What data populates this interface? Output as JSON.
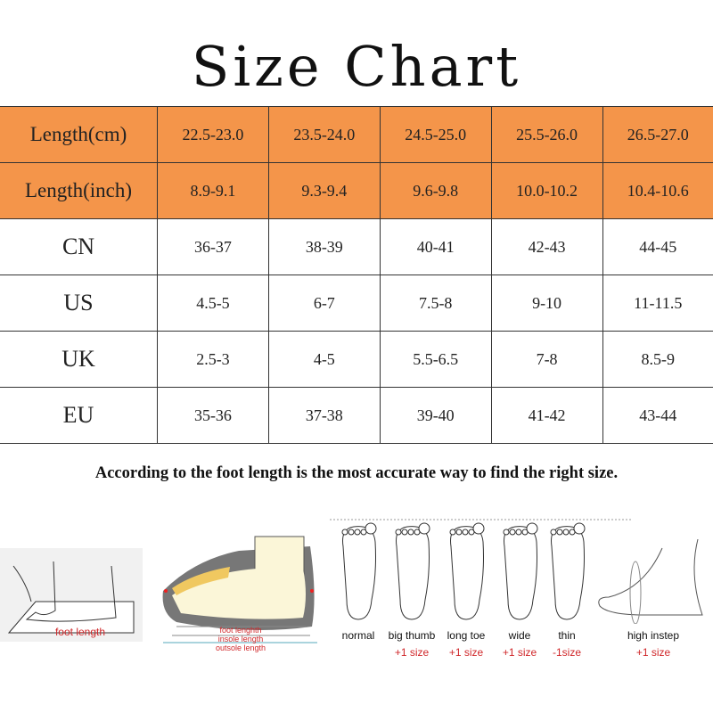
{
  "title": "Size Chart",
  "table": {
    "rows": [
      {
        "label": "Length(cm)",
        "values": [
          "22.5-23.0",
          "23.5-24.0",
          "24.5-25.0",
          "25.5-26.0",
          "26.5-27.0"
        ],
        "highlight": true
      },
      {
        "label": "Length(inch)",
        "values": [
          "8.9-9.1",
          "9.3-9.4",
          "9.6-9.8",
          "10.0-10.2",
          "10.4-10.6"
        ],
        "highlight": true
      },
      {
        "label": "CN",
        "values": [
          "36-37",
          "38-39",
          "40-41",
          "42-43",
          "44-45"
        ]
      },
      {
        "label": "US",
        "values": [
          "4.5-5",
          "6-7",
          "7.5-8",
          "9-10",
          "11-11.5"
        ]
      },
      {
        "label": "UK",
        "values": [
          "2.5-3",
          "4-5",
          "5.5-6.5",
          "7-8",
          "8.5-9"
        ]
      },
      {
        "label": "EU",
        "values": [
          "35-36",
          "37-38",
          "39-40",
          "41-42",
          "43-44"
        ]
      }
    ]
  },
  "note": "According to the foot length is the most  accurate way to find the right size.",
  "measure": {
    "foot_length": "foot length",
    "shoe_labels": [
      "foot lenghth",
      "insole length",
      "outsole length"
    ]
  },
  "foot_types": [
    {
      "name": "normal",
      "adjust": ""
    },
    {
      "name": "big thumb",
      "adjust": "+1 size"
    },
    {
      "name": "long toe",
      "adjust": "+1 size"
    },
    {
      "name": "wide",
      "adjust": "+1 size"
    },
    {
      "name": "thin",
      "adjust": "-1size"
    },
    {
      "name": "high instep",
      "adjust": "+1 size"
    }
  ],
  "colors": {
    "header_bg": "#F4954A",
    "accent_red": "#d0282b"
  }
}
